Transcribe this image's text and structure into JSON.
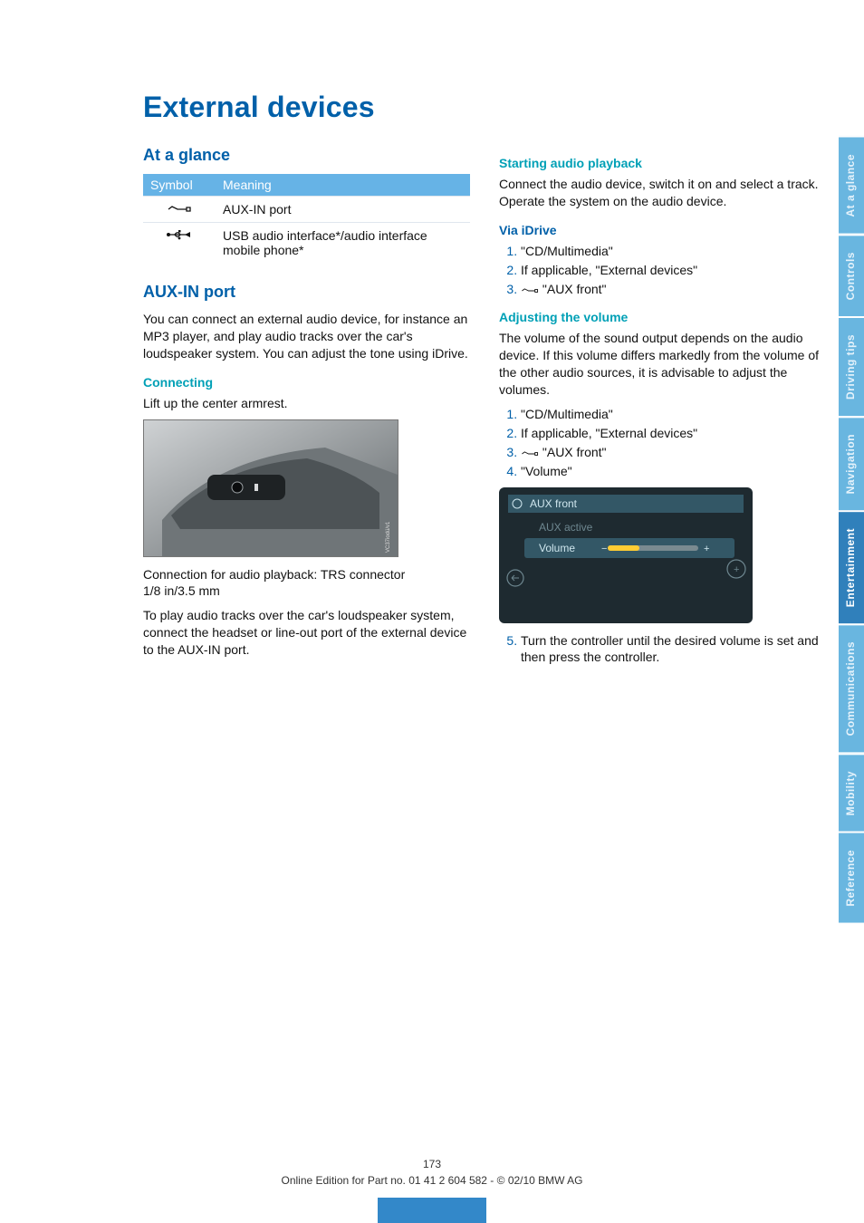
{
  "title": "External devices",
  "left": {
    "h_glance": "At a glance",
    "tbl": {
      "h_symbol": "Symbol",
      "h_meaning": "Meaning",
      "rows": [
        {
          "icon": "jack",
          "meaning": "AUX-IN port"
        },
        {
          "icon": "usb",
          "meaning": "USB audio interface*/audio interface mobile phone*"
        }
      ]
    },
    "h_aux": "AUX-IN port",
    "p_aux": "You can connect an external audio device, for instance an MP3 player, and play audio tracks over the car's loudspeaker system. You can adjust the tone using iDrive.",
    "h_conn": "Connecting",
    "p_conn": "Lift up the center armrest.",
    "p_after1": "Connection for audio playback: TRS connector 1/8 in/3.5 mm",
    "p_after2": "To play audio tracks over the car's loudspeaker system, connect the headset or line-out port of the external device to the AUX-IN port."
  },
  "right": {
    "h_start": "Starting audio playback",
    "p_start": "Connect the audio device, switch it on and select a track. Operate the system on the audio device.",
    "h_via": "Via iDrive",
    "ol_via": [
      "\"CD/Multimedia\"",
      "If applicable, \"External devices\"",
      "<jack>\"AUX front\""
    ],
    "h_vol": "Adjusting the volume",
    "p_vol": "The volume of the sound output depends on the audio device. If this volume differs markedly from the volume of the other audio sources, it is advisable to adjust the volumes.",
    "ol_vol": [
      "\"CD/Multimedia\"",
      "If applicable, \"External devices\"",
      "<jack>\"AUX front\"",
      "\"Volume\""
    ],
    "screen": {
      "header": "AUX front",
      "row_active": "AUX active",
      "row_volume": "Volume",
      "bg": "#1e2a30",
      "highlight": "#335766",
      "text": "#cfe6ee",
      "dim": "#6e8790",
      "track_off": "#7a8a90",
      "track_on": "#ffcc33"
    },
    "ol_after": [
      "Turn the controller until the desired volume is set and then press the controller."
    ]
  },
  "tabs": [
    "At a glance",
    "Controls",
    "Driving tips",
    "Navigation",
    "Entertainment",
    "Communications",
    "Mobility",
    "Reference"
  ],
  "tab_active": 4,
  "footer": {
    "page": "173",
    "line": "Online Edition for Part no. 01 41 2 604 582 - © 02/10 BMW AG"
  }
}
